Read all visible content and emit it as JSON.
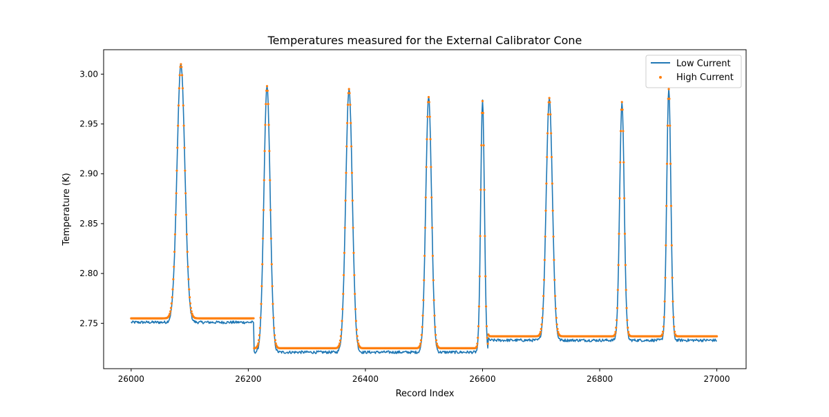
{
  "chart_data": {
    "type": "line",
    "title": "Temperatures measured for the External Calibrator Cone",
    "xlabel": "Record Index",
    "ylabel": "Temperature (K)",
    "xlim": [
      25953,
      27050
    ],
    "ylim": [
      2.7045,
      3.0245
    ],
    "x_ticks": [
      26000,
      26200,
      26400,
      26600,
      26800,
      27000
    ],
    "x_tick_labels": [
      "26000",
      "26200",
      "26400",
      "26600",
      "26800",
      "27000"
    ],
    "y_ticks": [
      2.75,
      2.8,
      2.85,
      2.9,
      2.95,
      3.0
    ],
    "y_tick_labels": [
      "2.75",
      "2.80",
      "2.85",
      "2.90",
      "2.95",
      "3.00"
    ],
    "grid": false,
    "legend_position": "top-right",
    "x_range": [
      26000,
      27000
    ],
    "peaks": [
      {
        "center": 26085,
        "width": 9.5,
        "peak": 3.01
      },
      {
        "center": 26232,
        "width": 7.5,
        "peak": 2.988
      },
      {
        "center": 26372,
        "width": 8.0,
        "peak": 2.985
      },
      {
        "center": 26508,
        "width": 7.0,
        "peak": 2.977
      },
      {
        "center": 26600,
        "width": 4.5,
        "peak": 2.973
      },
      {
        "center": 26714,
        "width": 7.5,
        "peak": 2.976
      },
      {
        "center": 26838,
        "width": 5.5,
        "peak": 2.972
      },
      {
        "center": 26918,
        "width": 5.0,
        "peak": 2.985
      }
    ],
    "baseline_segments": [
      {
        "from": 26000,
        "to": 26210,
        "high": 2.755,
        "low": 2.751
      },
      {
        "from": 26210,
        "to": 26610,
        "high": 2.725,
        "low": 2.721
      },
      {
        "from": 26610,
        "to": 27000,
        "high": 2.737,
        "low": 2.733
      }
    ],
    "series": [
      {
        "name": "Low Current",
        "kind": "line",
        "color": "#1f77b4"
      },
      {
        "name": "High Current",
        "kind": "scatter",
        "color": "#ff7f0e"
      }
    ]
  }
}
